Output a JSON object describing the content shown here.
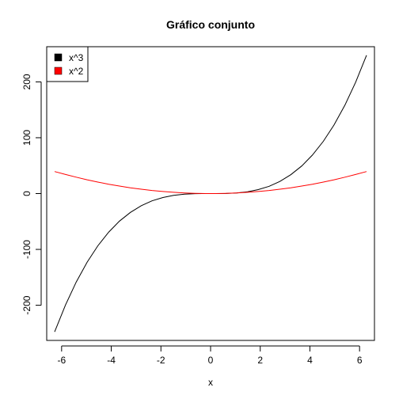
{
  "chart_data": {
    "type": "line",
    "title": "Gráfico conjunto",
    "xlabel": "x",
    "ylabel": "",
    "xlim": [
      -6.6,
      6.6
    ],
    "ylim": [
      -263,
      263
    ],
    "xticks": [
      -6,
      -4,
      -2,
      0,
      2,
      4,
      6
    ],
    "yticks": [
      -200,
      -100,
      0,
      100,
      200
    ],
    "xtick_labels": [
      "-6",
      "-4",
      "-2",
      "0",
      "2",
      "4",
      "6"
    ],
    "ytick_labels": [
      "-200",
      "-100",
      "0",
      "100",
      "200"
    ],
    "grid": false,
    "legend": "top-left",
    "x": [
      -6.28,
      -5.84,
      -5.41,
      -4.97,
      -4.54,
      -4.1,
      -3.67,
      -3.23,
      -2.79,
      -2.36,
      -1.92,
      -1.49,
      -1.05,
      -0.62,
      -0.18,
      0.18,
      0.62,
      1.05,
      1.49,
      1.92,
      2.36,
      2.79,
      3.23,
      3.67,
      4.1,
      4.54,
      4.97,
      5.41,
      5.84,
      6.28
    ],
    "series": [
      {
        "name": "x^3",
        "color": "#000000",
        "values": [
          -247.7,
          -199.4,
          -158.3,
          -122.8,
          -93.6,
          -68.9,
          -49.4,
          -33.7,
          -21.7,
          -13.1,
          -7.1,
          -3.3,
          -1.2,
          -0.2,
          -0.01,
          0.01,
          0.2,
          1.2,
          3.3,
          7.1,
          13.1,
          21.7,
          33.7,
          49.4,
          68.9,
          93.6,
          122.8,
          158.3,
          199.4,
          247.7
        ]
      },
      {
        "name": "x^2",
        "color": "#ff0000",
        "values": [
          39.4,
          34.1,
          29.3,
          24.7,
          20.6,
          16.8,
          13.5,
          10.4,
          7.8,
          5.6,
          3.7,
          2.2,
          1.1,
          0.4,
          0.03,
          0.03,
          0.4,
          1.1,
          2.2,
          3.7,
          5.6,
          7.8,
          10.4,
          13.5,
          16.8,
          20.6,
          24.7,
          29.3,
          34.1,
          39.4
        ]
      }
    ]
  }
}
